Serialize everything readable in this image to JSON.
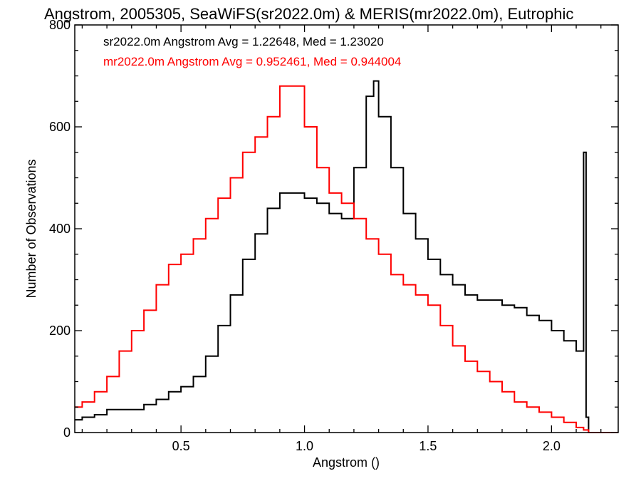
{
  "chart_data": {
    "type": "histogram-step",
    "title": "Angstrom, 2005305, SeaWiFS(sr2022.0m) & MERIS(mr2022.0m), Eutrophic",
    "xlabel": "Angstrom ()",
    "ylabel": "Number of Observations",
    "xlim": [
      0.07,
      2.27
    ],
    "ylim": [
      0,
      800
    ],
    "xticks": [
      0.5,
      1.0,
      1.5,
      2.0
    ],
    "xtick_labels": [
      "0.5",
      "1.0",
      "1.5",
      "2.0"
    ],
    "yticks": [
      0,
      200,
      400,
      600,
      800
    ],
    "ytick_labels": [
      "0",
      "200",
      "400",
      "600",
      "800"
    ],
    "grid": false,
    "legend": "top-left (text annotations)",
    "annotations": [
      {
        "text": "sr2022.0m Angstrom Avg = 1.22648, Med = 1.23020",
        "color": "#000000"
      },
      {
        "text": "mr2022.0m Angstrom Avg = 0.952461, Med = 0.944004",
        "color": "#ff0000"
      }
    ],
    "series": [
      {
        "name": "sr2022.0m",
        "color": "#000000",
        "x": [
          0.07,
          0.1,
          0.15,
          0.2,
          0.25,
          0.3,
          0.35,
          0.4,
          0.45,
          0.5,
          0.55,
          0.6,
          0.65,
          0.7,
          0.75,
          0.8,
          0.85,
          0.9,
          0.95,
          1.0,
          1.05,
          1.1,
          1.15,
          1.2,
          1.25,
          1.28,
          1.3,
          1.35,
          1.4,
          1.45,
          1.5,
          1.55,
          1.6,
          1.65,
          1.7,
          1.75,
          1.8,
          1.85,
          1.9,
          1.95,
          2.0,
          2.05,
          2.1,
          2.13,
          2.14,
          2.15,
          2.16,
          2.27
        ],
        "values": [
          25,
          30,
          35,
          45,
          45,
          45,
          55,
          65,
          80,
          90,
          110,
          150,
          210,
          270,
          340,
          390,
          440,
          470,
          470,
          460,
          450,
          430,
          420,
          520,
          660,
          690,
          620,
          520,
          430,
          380,
          340,
          310,
          290,
          270,
          260,
          260,
          250,
          245,
          230,
          220,
          200,
          180,
          160,
          550,
          30,
          0,
          0,
          0
        ]
      },
      {
        "name": "mr2022.0m",
        "color": "#ff0000",
        "x": [
          0.07,
          0.1,
          0.15,
          0.2,
          0.25,
          0.3,
          0.35,
          0.4,
          0.45,
          0.5,
          0.55,
          0.6,
          0.65,
          0.7,
          0.75,
          0.8,
          0.85,
          0.9,
          0.95,
          1.0,
          1.05,
          1.1,
          1.15,
          1.2,
          1.25,
          1.3,
          1.35,
          1.4,
          1.45,
          1.5,
          1.55,
          1.6,
          1.65,
          1.7,
          1.75,
          1.8,
          1.85,
          1.9,
          1.95,
          2.0,
          2.05,
          2.1,
          2.13,
          2.15,
          2.2,
          2.27
        ],
        "values": [
          50,
          60,
          80,
          110,
          160,
          200,
          240,
          290,
          330,
          350,
          380,
          420,
          460,
          500,
          550,
          580,
          620,
          680,
          680,
          600,
          520,
          470,
          450,
          420,
          380,
          350,
          310,
          290,
          270,
          250,
          210,
          170,
          140,
          120,
          100,
          80,
          60,
          50,
          40,
          30,
          20,
          10,
          5,
          0,
          0,
          0
        ]
      }
    ]
  }
}
